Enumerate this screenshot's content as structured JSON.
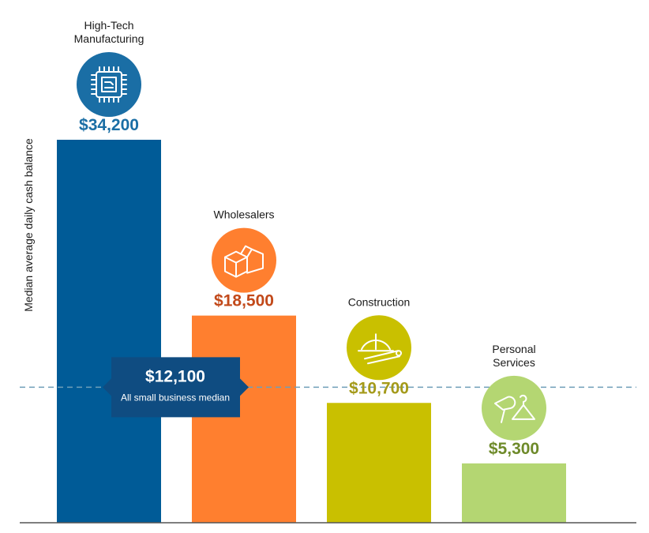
{
  "chart_data": {
    "type": "bar",
    "ylabel": "Median average daily cash balance",
    "ylim": [
      0,
      41000
    ],
    "grid": false,
    "categories": [
      [
        "High-Tech",
        "Manufacturing"
      ],
      [
        "Wholesalers"
      ],
      [
        "Construction"
      ],
      [
        "Personal",
        "Services"
      ]
    ],
    "values": [
      34200,
      18500,
      10700,
      5300
    ],
    "value_labels": [
      "$34,200",
      "$18,500",
      "$10,700",
      "$5,300"
    ],
    "bar_colors": [
      "#005b97",
      "#ff7f2f",
      "#c9c000",
      "#b4d672"
    ],
    "value_label_colors": [
      "#1a6ea5",
      "#c2491a",
      "#a49a1a",
      "#6e8a2a"
    ],
    "icons": [
      "microchip-icon",
      "boxes-icon",
      "hardhat-blueprint-icon",
      "hairdryer-hanger-icon"
    ],
    "icon_colors": [
      "#1a6ea5",
      "#ff7f2f",
      "#c9c000",
      "#b4d672"
    ],
    "reference_line": {
      "value": 12100,
      "value_label": "$12,100",
      "label": "All small business median",
      "line_color": "#6f9fb8",
      "box_color": "#0f4c81"
    }
  }
}
